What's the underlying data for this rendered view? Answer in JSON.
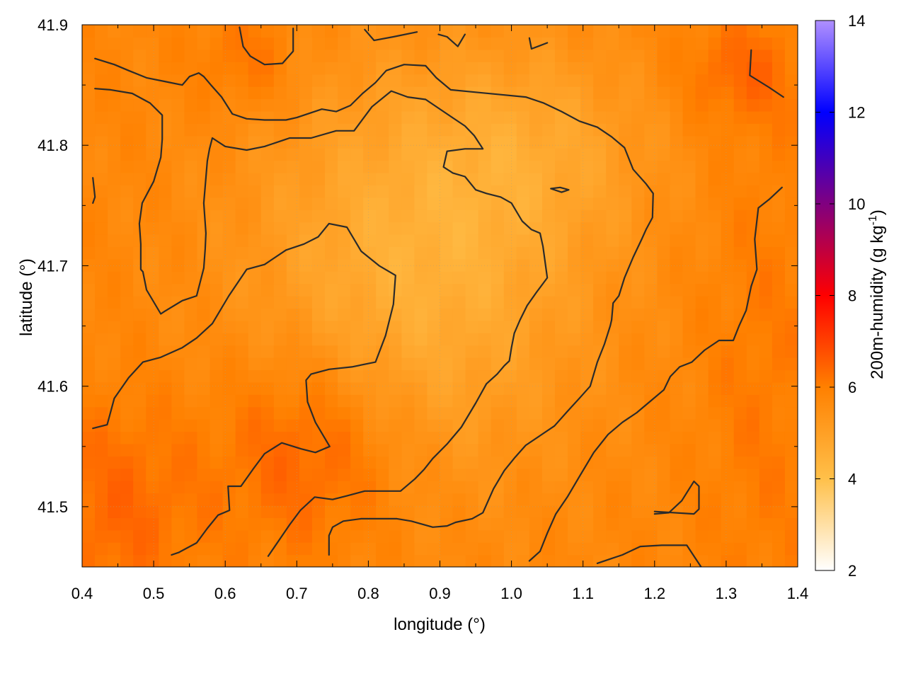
{
  "chart_data": {
    "type": "heatmap",
    "title": "",
    "xlabel": "longitude (°)",
    "ylabel": "latitude (°)",
    "xlim": [
      0.4,
      1.4
    ],
    "ylim": [
      41.45,
      41.9
    ],
    "xticks": [
      {
        "value": 0.4,
        "label": "0.4"
      },
      {
        "value": 0.5,
        "label": "0.5"
      },
      {
        "value": 0.6,
        "label": "0.6"
      },
      {
        "value": 0.7,
        "label": "0.7"
      },
      {
        "value": 0.8,
        "label": "0.8"
      },
      {
        "value": 0.9,
        "label": "0.9"
      },
      {
        "value": 1.0,
        "label": "1.0"
      },
      {
        "value": 1.1,
        "label": "1.1"
      },
      {
        "value": 1.2,
        "label": "1.2"
      },
      {
        "value": 1.3,
        "label": "1.3"
      },
      {
        "value": 1.4,
        "label": "1.4"
      }
    ],
    "yticks": [
      {
        "value": 41.5,
        "label": "41.5"
      },
      {
        "value": 41.6,
        "label": "41.6"
      },
      {
        "value": 41.7,
        "label": "41.7"
      },
      {
        "value": 41.8,
        "label": "41.8"
      },
      {
        "value": 41.9,
        "label": "41.9"
      }
    ],
    "grid": true,
    "colorbar": {
      "label_prefix": "200m-humidity (g kg",
      "label_sup": "-1",
      "label_suffix": ")",
      "range": [
        2,
        14
      ],
      "ticks": [
        {
          "value": 2,
          "label": "2"
        },
        {
          "value": 4,
          "label": "4"
        },
        {
          "value": 6,
          "label": "6"
        },
        {
          "value": 8,
          "label": "8"
        },
        {
          "value": 10,
          "label": "10"
        },
        {
          "value": 12,
          "label": "12"
        },
        {
          "value": 14,
          "label": "14"
        }
      ],
      "stops": [
        {
          "value": 2,
          "color": "#ffffff"
        },
        {
          "value": 4,
          "color": "#ffc04a"
        },
        {
          "value": 6,
          "color": "#ff8000"
        },
        {
          "value": 8,
          "color": "#ff0000"
        },
        {
          "value": 10,
          "color": "#800080"
        },
        {
          "value": 12,
          "color": "#0000ff"
        },
        {
          "value": 14,
          "color": "#b090ff"
        }
      ]
    },
    "field": {
      "description_values": "approximate 200m humidity in g/kg",
      "base": 5.8,
      "features": [
        {
          "cx": 0.87,
          "cy": 41.7,
          "sx": 0.17,
          "sy": 0.12,
          "amp": -1.3
        },
        {
          "cx": 1.05,
          "cy": 41.8,
          "sx": 0.12,
          "sy": 0.06,
          "amp": -0.6
        },
        {
          "cx": 0.72,
          "cy": 41.55,
          "sx": 0.09,
          "sy": 0.06,
          "amp": 0.9
        },
        {
          "cx": 0.45,
          "cy": 41.5,
          "sx": 0.08,
          "sy": 0.06,
          "amp": 0.6
        },
        {
          "cx": 1.32,
          "cy": 41.86,
          "sx": 0.06,
          "sy": 0.03,
          "amp": 0.6
        },
        {
          "cx": 0.63,
          "cy": 41.87,
          "sx": 0.05,
          "sy": 0.03,
          "amp": 0.5
        },
        {
          "cx": 1.35,
          "cy": 41.6,
          "sx": 0.06,
          "sy": 0.15,
          "amp": 0.3
        }
      ]
    },
    "contours": [
      [
        [
          0.415,
          41.565
        ],
        [
          0.435,
          41.568
        ],
        [
          0.445,
          41.59
        ],
        [
          0.465,
          41.607
        ],
        [
          0.485,
          41.62
        ],
        [
          0.51,
          41.624
        ],
        [
          0.54,
          41.632
        ],
        [
          0.56,
          41.64
        ],
        [
          0.582,
          41.652
        ],
        [
          0.605,
          41.675
        ],
        [
          0.63,
          41.697
        ],
        [
          0.655,
          41.701
        ],
        [
          0.685,
          41.713
        ],
        [
          0.71,
          41.718
        ],
        [
          0.73,
          41.724
        ],
        [
          0.745,
          41.735
        ],
        [
          0.77,
          41.732
        ],
        [
          0.79,
          41.712
        ],
        [
          0.815,
          41.7
        ],
        [
          0.838,
          41.692
        ],
        [
          0.835,
          41.668
        ],
        [
          0.824,
          41.642
        ],
        [
          0.81,
          41.62
        ],
        [
          0.777,
          41.616
        ],
        [
          0.745,
          41.614
        ],
        [
          0.72,
          41.61
        ],
        [
          0.713,
          41.605
        ],
        [
          0.715,
          41.587
        ],
        [
          0.726,
          41.57
        ],
        [
          0.746,
          41.55
        ],
        [
          0.726,
          41.545
        ],
        [
          0.706,
          41.548
        ],
        [
          0.679,
          41.553
        ],
        [
          0.655,
          41.544
        ],
        [
          0.64,
          41.532
        ],
        [
          0.622,
          41.517
        ],
        [
          0.604,
          41.517
        ],
        [
          0.606,
          41.497
        ],
        [
          0.59,
          41.493
        ],
        [
          0.575,
          41.482
        ],
        [
          0.56,
          41.47
        ],
        [
          0.535,
          41.462
        ],
        [
          0.525,
          41.46
        ]
      ],
      [
        [
          0.66,
          41.459
        ],
        [
          0.675,
          41.472
        ],
        [
          0.69,
          41.485
        ],
        [
          0.705,
          41.497
        ],
        [
          0.725,
          41.508
        ],
        [
          0.75,
          41.506
        ],
        [
          0.77,
          41.509
        ],
        [
          0.795,
          41.513
        ],
        [
          0.82,
          41.513
        ],
        [
          0.845,
          41.513
        ],
        [
          0.865,
          41.523
        ],
        [
          0.878,
          41.531
        ],
        [
          0.89,
          41.54
        ],
        [
          0.91,
          41.552
        ],
        [
          0.93,
          41.566
        ],
        [
          0.95,
          41.586
        ],
        [
          0.965,
          41.602
        ],
        [
          0.98,
          41.61
        ],
        [
          0.99,
          41.617
        ],
        [
          0.997,
          41.621
        ],
        [
          1.0,
          41.632
        ],
        [
          1.004,
          41.644
        ],
        [
          1.012,
          41.655
        ],
        [
          1.022,
          41.667
        ],
        [
          1.035,
          41.678
        ],
        [
          1.05,
          41.69
        ],
        [
          1.044,
          41.716
        ],
        [
          1.04,
          41.727
        ],
        [
          1.028,
          41.73
        ],
        [
          1.015,
          41.737
        ],
        [
          1.0,
          41.752
        ],
        [
          0.985,
          41.757
        ],
        [
          0.965,
          41.76
        ],
        [
          0.95,
          41.763
        ],
        [
          0.935,
          41.774
        ],
        [
          0.918,
          41.777
        ],
        [
          0.905,
          41.782
        ],
        [
          0.91,
          41.795
        ],
        [
          0.935,
          41.797
        ],
        [
          0.96,
          41.797
        ],
        [
          0.948,
          41.808
        ],
        [
          0.935,
          41.816
        ],
        [
          0.91,
          41.826
        ],
        [
          0.88,
          41.838
        ],
        [
          0.855,
          41.84
        ],
        [
          0.832,
          41.845
        ],
        [
          0.805,
          41.832
        ],
        [
          0.78,
          41.812
        ],
        [
          0.755,
          41.812
        ],
        [
          0.72,
          41.806
        ],
        [
          0.69,
          41.806
        ],
        [
          0.68,
          41.804
        ],
        [
          0.655,
          41.799
        ],
        [
          0.63,
          41.796
        ],
        [
          0.6,
          41.799
        ],
        [
          0.582,
          41.806
        ],
        [
          0.578,
          41.797
        ],
        [
          0.575,
          41.787
        ],
        [
          0.57,
          41.752
        ],
        [
          0.573,
          41.727
        ],
        [
          0.572,
          41.714
        ],
        [
          0.57,
          41.698
        ],
        [
          0.56,
          41.675
        ],
        [
          0.54,
          41.671
        ],
        [
          0.515,
          41.662
        ],
        [
          0.51,
          41.66
        ],
        [
          0.49,
          41.68
        ],
        [
          0.485,
          41.695
        ],
        [
          0.482,
          41.697
        ],
        [
          0.482,
          41.718
        ],
        [
          0.48,
          41.735
        ],
        [
          0.484,
          41.752
        ],
        [
          0.5,
          41.77
        ],
        [
          0.51,
          41.79
        ],
        [
          0.512,
          41.805
        ],
        [
          0.512,
          41.825
        ],
        [
          0.495,
          41.835
        ],
        [
          0.47,
          41.843
        ],
        [
          0.44,
          41.846
        ],
        [
          0.418,
          41.847
        ]
      ],
      [
        [
          0.418,
          41.872
        ],
        [
          0.445,
          41.867
        ],
        [
          0.465,
          41.862
        ],
        [
          0.49,
          41.856
        ],
        [
          0.515,
          41.853
        ],
        [
          0.54,
          41.85
        ],
        [
          0.55,
          41.857
        ],
        [
          0.563,
          41.86
        ],
        [
          0.57,
          41.857
        ],
        [
          0.58,
          41.85
        ],
        [
          0.595,
          41.84
        ],
        [
          0.61,
          41.826
        ],
        [
          0.63,
          41.822
        ],
        [
          0.655,
          41.821
        ],
        [
          0.685,
          41.821
        ],
        [
          0.7,
          41.823
        ],
        [
          0.735,
          41.83
        ],
        [
          0.755,
          41.828
        ],
        [
          0.775,
          41.833
        ],
        [
          0.792,
          41.843
        ],
        [
          0.81,
          41.852
        ],
        [
          0.825,
          41.862
        ],
        [
          0.85,
          41.867
        ],
        [
          0.88,
          41.866
        ],
        [
          0.895,
          41.856
        ],
        [
          0.915,
          41.846
        ],
        [
          0.95,
          41.844
        ],
        [
          0.985,
          41.842
        ],
        [
          1.02,
          41.84
        ],
        [
          1.045,
          41.835
        ],
        [
          1.07,
          41.828
        ],
        [
          1.095,
          41.82
        ],
        [
          1.12,
          41.815
        ],
        [
          1.14,
          41.807
        ],
        [
          1.158,
          41.798
        ],
        [
          1.17,
          41.78
        ],
        [
          1.188,
          41.768
        ],
        [
          1.198,
          41.76
        ],
        [
          1.197,
          41.74
        ],
        [
          1.188,
          41.73
        ],
        [
          1.182,
          41.722
        ],
        [
          1.17,
          41.707
        ],
        [
          1.158,
          41.69
        ],
        [
          1.15,
          41.675
        ],
        [
          1.142,
          41.669
        ],
        [
          1.14,
          41.655
        ],
        [
          1.138,
          41.65
        ],
        [
          1.13,
          41.635
        ],
        [
          1.12,
          41.62
        ],
        [
          1.11,
          41.6
        ],
        [
          1.095,
          41.59
        ],
        [
          1.078,
          41.579
        ],
        [
          1.06,
          41.567
        ],
        [
          1.04,
          41.559
        ],
        [
          1.02,
          41.551
        ],
        [
          1.005,
          41.541
        ],
        [
          0.99,
          41.53
        ],
        [
          0.975,
          41.515
        ],
        [
          0.96,
          41.495
        ],
        [
          0.945,
          41.49
        ],
        [
          0.922,
          41.487
        ],
        [
          0.91,
          41.484
        ],
        [
          0.89,
          41.483
        ],
        [
          0.86,
          41.488
        ],
        [
          0.84,
          41.49
        ],
        [
          0.81,
          41.49
        ],
        [
          0.79,
          41.49
        ],
        [
          0.765,
          41.488
        ],
        [
          0.75,
          41.483
        ],
        [
          0.745,
          41.476
        ],
        [
          0.745,
          41.46
        ]
      ],
      [
        [
          1.025,
          41.455
        ],
        [
          1.04,
          41.463
        ],
        [
          1.05,
          41.478
        ],
        [
          1.062,
          41.494
        ],
        [
          1.078,
          41.508
        ],
        [
          1.095,
          41.525
        ],
        [
          1.115,
          41.545
        ],
        [
          1.135,
          41.56
        ],
        [
          1.155,
          41.57
        ],
        [
          1.175,
          41.578
        ],
        [
          1.195,
          41.588
        ],
        [
          1.213,
          41.597
        ],
        [
          1.222,
          41.608
        ],
        [
          1.235,
          41.616
        ],
        [
          1.252,
          41.62
        ],
        [
          1.27,
          41.63
        ],
        [
          1.29,
          41.638
        ],
        [
          1.31,
          41.638
        ],
        [
          1.318,
          41.65
        ],
        [
          1.328,
          41.663
        ],
        [
          1.335,
          41.683
        ],
        [
          1.343,
          41.697
        ],
        [
          1.34,
          41.722
        ],
        [
          1.345,
          41.748
        ],
        [
          1.36,
          41.755
        ],
        [
          1.378,
          41.765
        ]
      ],
      [
        [
          1.12,
          41.453
        ],
        [
          1.14,
          41.457
        ],
        [
          1.155,
          41.46
        ],
        [
          1.18,
          41.467
        ],
        [
          1.21,
          41.468
        ],
        [
          1.245,
          41.468
        ],
        [
          1.265,
          41.45
        ]
      ],
      [
        [
          1.2,
          41.494
        ],
        [
          1.22,
          41.495
        ],
        [
          1.238,
          41.505
        ],
        [
          1.255,
          41.521
        ],
        [
          1.262,
          41.517
        ],
        [
          1.262,
          41.498
        ],
        [
          1.255,
          41.494
        ],
        [
          1.2,
          41.496
        ]
      ],
      [
        [
          0.415,
          41.773
        ],
        [
          0.418,
          41.757
        ],
        [
          0.415,
          41.752
        ]
      ],
      [
        [
          1.055,
          41.764
        ],
        [
          1.068,
          41.765
        ],
        [
          1.08,
          41.763
        ],
        [
          1.07,
          41.761
        ],
        [
          1.055,
          41.764
        ]
      ],
      [
        [
          0.62,
          41.898
        ],
        [
          0.625,
          41.882
        ],
        [
          0.635,
          41.874
        ],
        [
          0.655,
          41.867
        ],
        [
          0.68,
          41.868
        ],
        [
          0.695,
          41.878
        ],
        [
          0.695,
          41.897
        ]
      ],
      [
        [
          0.795,
          41.896
        ],
        [
          0.808,
          41.887
        ],
        [
          0.835,
          41.89
        ],
        [
          0.868,
          41.894
        ]
      ],
      [
        [
          0.898,
          41.892
        ],
        [
          0.91,
          41.89
        ],
        [
          0.925,
          41.882
        ],
        [
          0.935,
          41.892
        ]
      ],
      [
        [
          1.025,
          41.889
        ],
        [
          1.028,
          41.88
        ],
        [
          1.05,
          41.885
        ]
      ],
      [
        [
          1.335,
          41.879
        ],
        [
          1.333,
          41.858
        ],
        [
          1.36,
          41.848
        ],
        [
          1.38,
          41.84
        ]
      ]
    ]
  }
}
